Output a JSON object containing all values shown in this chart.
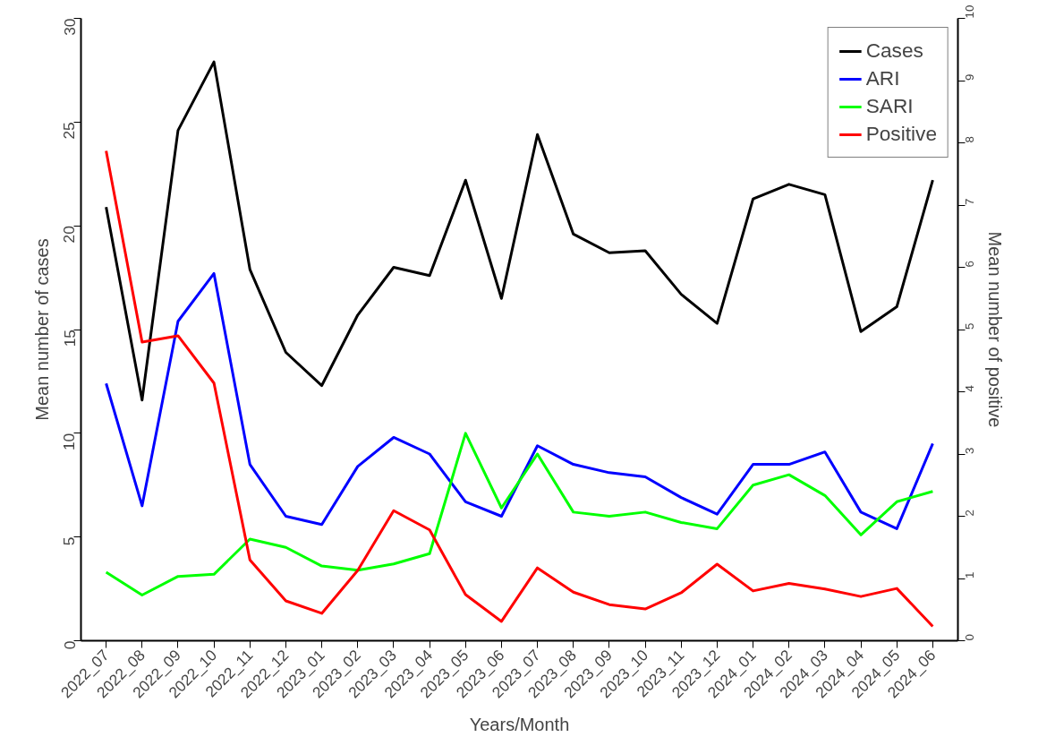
{
  "chart_data": {
    "type": "line",
    "xlabel": "Years/Month",
    "ylabel": "Mean number of cases",
    "y2label": "Mean number of positive",
    "categories": [
      "2022_07",
      "2022_08",
      "2022_09",
      "2022_10",
      "2022_11",
      "2022_12",
      "2023_01",
      "2023_02",
      "2023_03",
      "2023_04",
      "2023_05",
      "2023_06",
      "2023_07",
      "2023_08",
      "2023_09",
      "2023_10",
      "2023_11",
      "2023_12",
      "2024_01",
      "2024_02",
      "2024_03",
      "2024_04",
      "2024_05",
      "2024_06"
    ],
    "series": [
      {
        "name": "Cases",
        "color": "#000000",
        "values": [
          20.9,
          11.6,
          24.6,
          27.9,
          17.9,
          13.9,
          12.3,
          15.7,
          18.0,
          17.6,
          22.2,
          16.5,
          24.4,
          19.6,
          18.7,
          18.8,
          16.7,
          15.3,
          21.3,
          22.0,
          21.5,
          14.9,
          16.1,
          22.2
        ]
      },
      {
        "name": "ARI",
        "color": "#0000ff",
        "values": [
          12.4,
          6.5,
          15.4,
          17.7,
          8.5,
          6.0,
          5.6,
          8.4,
          9.8,
          9.0,
          6.7,
          6.0,
          9.4,
          8.5,
          8.1,
          7.9,
          6.9,
          6.1,
          8.5,
          8.5,
          9.1,
          6.2,
          5.4,
          9.5
        ]
      },
      {
        "name": "SARI",
        "color": "#00ff00",
        "values": [
          3.3,
          2.2,
          3.1,
          3.2,
          4.9,
          4.5,
          3.6,
          3.4,
          3.7,
          4.2,
          10.0,
          6.4,
          9.0,
          6.2,
          6.0,
          6.2,
          5.7,
          5.4,
          7.5,
          8.0,
          7.0,
          5.1,
          6.7,
          7.2
        ]
      },
      {
        "name": "Positive",
        "color": "#ff0000",
        "axis": "y2",
        "values": [
          7.87,
          4.8,
          4.9,
          4.14,
          1.3,
          0.64,
          0.44,
          1.13,
          2.09,
          1.78,
          0.74,
          0.31,
          1.17,
          0.78,
          0.58,
          0.51,
          0.77,
          1.23,
          0.8,
          0.92,
          0.83,
          0.71,
          0.84,
          0.23
        ]
      }
    ],
    "ylim": [
      0,
      30
    ],
    "yticks": [
      0,
      5,
      10,
      15,
      20,
      25,
      30
    ],
    "y2lim": [
      0,
      10
    ],
    "y2ticks": [
      0,
      1,
      2,
      3,
      4,
      5,
      6,
      7,
      8,
      9,
      10
    ],
    "grid": false,
    "legend": "top right",
    "marker": "none",
    "line_style": "solid"
  }
}
